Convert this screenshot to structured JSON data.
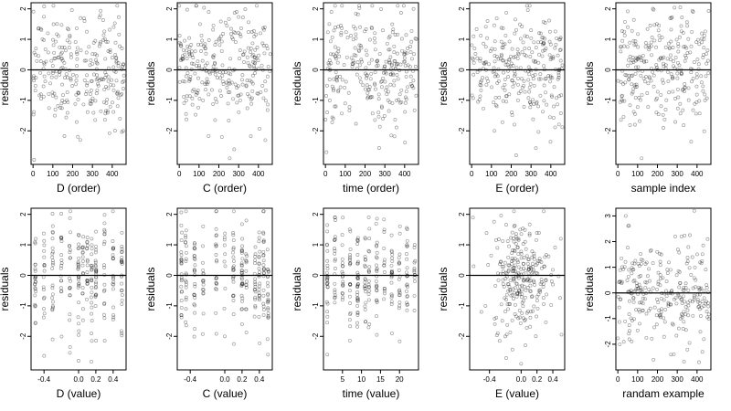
{
  "chart_data": [
    {
      "type": "scatter",
      "title": "",
      "xlabel": "D (order)",
      "ylabel": "residuals",
      "xlim": [
        -10,
        470
      ],
      "ylim": [
        -3.1,
        2.2
      ],
      "xticks": [
        0,
        100,
        200,
        300,
        400
      ],
      "yticks": [
        -2,
        -1,
        0,
        1,
        2
      ],
      "reference_line_y": 0,
      "grid": false,
      "legend": "none",
      "series": [
        {
          "x": [
            12,
            40,
            75,
            110,
            150,
            185,
            220,
            260,
            300,
            340,
            380,
            420,
            455
          ],
          "y": [
            0.5,
            -0.8,
            1.2,
            -1.5,
            0.3,
            0.9,
            -0.2,
            1.6,
            0.2,
            1.8,
            -0.6,
            0.4,
            -2.0
          ]
        }
      ]
    },
    {
      "type": "scatter",
      "title": "",
      "xlabel": "C (order)",
      "ylabel": "residuals",
      "xlim": [
        -10,
        470
      ],
      "ylim": [
        -3.1,
        2.2
      ],
      "xticks": [
        0,
        100,
        200,
        300,
        400
      ],
      "yticks": [
        -2,
        -1,
        0,
        1,
        2
      ],
      "reference_line_y": 0,
      "grid": false,
      "legend": "none",
      "series": [
        {
          "x": [
            8,
            35,
            70,
            105,
            140,
            180,
            215,
            255,
            290,
            330,
            370,
            410,
            450
          ],
          "y": [
            0.8,
            -1.0,
            0.4,
            1.5,
            -0.3,
            0.2,
            -2.2,
            -2.9,
            1.9,
            0.6,
            -0.7,
            1.2,
            0.1
          ]
        }
      ]
    },
    {
      "type": "scatter",
      "title": "",
      "xlabel": "time (order)",
      "ylabel": "residuals",
      "xlim": [
        -10,
        470
      ],
      "ylim": [
        -3.1,
        2.2
      ],
      "xticks": [
        0,
        100,
        200,
        300,
        400
      ],
      "yticks": [
        -2,
        -1,
        0,
        1,
        2
      ],
      "reference_line_y": 0,
      "grid": false,
      "legend": "none",
      "series": [
        {
          "x": [
            5,
            30,
            65,
            100,
            140,
            175,
            210,
            250,
            290,
            325,
            365,
            405,
            445
          ],
          "y": [
            -2.7,
            1.9,
            0.6,
            -1.1,
            0.3,
            1.4,
            -0.5,
            0.9,
            -1.6,
            1.1,
            0.2,
            -0.9,
            2.0
          ]
        }
      ]
    },
    {
      "type": "scatter",
      "title": "",
      "xlabel": "E (order)",
      "ylabel": "residuals",
      "xlim": [
        -10,
        470
      ],
      "ylim": [
        -3.1,
        2.2
      ],
      "xticks": [
        0,
        100,
        200,
        300,
        400
      ],
      "yticks": [
        -2,
        -1,
        0,
        1,
        2
      ],
      "reference_line_y": 0,
      "grid": false,
      "legend": "none",
      "series": [
        {
          "x": [
            10,
            45,
            80,
            115,
            150,
            190,
            225,
            260,
            300,
            340,
            375,
            415,
            450
          ],
          "y": [
            1.1,
            -0.4,
            1.6,
            -2.0,
            0.5,
            -0.8,
            -2.8,
            0.9,
            1.3,
            -0.3,
            0.7,
            -1.2,
            0.3
          ]
        }
      ]
    },
    {
      "type": "scatter",
      "title": "",
      "xlabel": "sample index",
      "ylabel": "residuals",
      "xlim": [
        -10,
        470
      ],
      "ylim": [
        -3.1,
        2.2
      ],
      "xticks": [
        0,
        100,
        200,
        300,
        400
      ],
      "yticks": [
        -2,
        -1,
        0,
        1,
        2
      ],
      "reference_line_y": 0,
      "grid": false,
      "legend": "none",
      "series": [
        {
          "x": [
            15,
            50,
            85,
            120,
            155,
            195,
            230,
            270,
            305,
            345,
            380,
            420,
            455
          ],
          "y": [
            0.6,
            1.4,
            -0.5,
            -2.9,
            0.8,
            -1.4,
            0.2,
            1.7,
            -0.9,
            0.4,
            1.9,
            -0.2,
            0.3
          ]
        }
      ]
    },
    {
      "type": "scatter",
      "title": "",
      "xlabel": "D (value)",
      "ylabel": "residuals",
      "xlim": [
        -0.55,
        0.55
      ],
      "ylim": [
        -3.1,
        2.2
      ],
      "xticks": [
        -0.4,
        0,
        0.2,
        0.4
      ],
      "xticklabels": [
        "-0.4",
        "0.0",
        "0.2",
        "0.4"
      ],
      "yticks": [
        -2,
        -1,
        0,
        1,
        2
      ],
      "reference_line_y": 0,
      "grid": false,
      "legend": "none",
      "series": [
        {
          "x": [
            -0.5,
            -0.4,
            -0.3,
            -0.2,
            -0.1,
            0,
            0.05,
            0.1,
            0.15,
            0.2,
            0.3,
            0.4,
            0.5
          ],
          "y": [
            -1.0,
            0.8,
            -2.1,
            1.2,
            -0.4,
            -2.8,
            0.6,
            1.1,
            -0.9,
            0.3,
            -1.4,
            0.9,
            -1.9
          ]
        }
      ]
    },
    {
      "type": "scatter",
      "title": "",
      "xlabel": "C (value)",
      "ylabel": "residuals",
      "xlim": [
        -0.55,
        0.55
      ],
      "ylim": [
        -3.1,
        2.2
      ],
      "xticks": [
        -0.4,
        0,
        0.2,
        0.4
      ],
      "xticklabels": [
        "-0.4",
        "0.0",
        "0.2",
        "0.4"
      ],
      "yticks": [
        -2,
        -1,
        0,
        1,
        2
      ],
      "reference_line_y": 0,
      "grid": false,
      "legend": "none",
      "series": [
        {
          "x": [
            -0.5,
            -0.45,
            -0.35,
            -0.25,
            -0.1,
            0,
            0.1,
            0.2,
            0.25,
            0.35,
            0.4,
            0.45,
            0.5
          ],
          "y": [
            0.5,
            -1.1,
            0.9,
            -0.6,
            1.3,
            -2.0,
            0.2,
            -1.6,
            1.8,
            0.4,
            -0.8,
            1.1,
            -2.6
          ]
        }
      ]
    },
    {
      "type": "scatter",
      "title": "",
      "xlabel": "time (value)",
      "ylabel": "residuals",
      "xlim": [
        0,
        25
      ],
      "ylim": [
        -3.1,
        2.2
      ],
      "xticks": [
        5,
        10,
        15,
        20
      ],
      "yticks": [
        -2,
        -1,
        0,
        1,
        2
      ],
      "reference_line_y": 0,
      "grid": false,
      "legend": "none",
      "series": [
        {
          "x": [
            1,
            3,
            5,
            7,
            9,
            11,
            12,
            14,
            16,
            18,
            20,
            22,
            24
          ],
          "y": [
            -2.6,
            1.9,
            -0.8,
            0.6,
            -1.3,
            1.2,
            0.1,
            -0.5,
            1.5,
            -1.9,
            0.4,
            -0.7,
            1.0
          ]
        }
      ]
    },
    {
      "type": "scatter",
      "title": "",
      "xlabel": "E (value)",
      "ylabel": "residuals",
      "xlim": [
        -0.65,
        0.55
      ],
      "ylim": [
        -3.1,
        2.2
      ],
      "xticks": [
        -0.4,
        0,
        0.2,
        0.4
      ],
      "xticklabels": [
        "-0.4",
        "0.0",
        "0.2",
        "0.4"
      ],
      "yticks": [
        -2,
        -1,
        0,
        1,
        2
      ],
      "reference_line_y": 0,
      "grid": false,
      "legend": "none",
      "series": [
        {
          "x": [
            -0.6,
            -0.45,
            -0.3,
            -0.2,
            -0.1,
            -0.05,
            0,
            0.05,
            0.1,
            0.2,
            0.3,
            0.4,
            0.5
          ],
          "y": [
            0.3,
            -1.0,
            0.9,
            -2.0,
            0.5,
            -0.6,
            -2.9,
            1.1,
            0.2,
            -0.7,
            0.6,
            -0.3,
            1.2
          ]
        }
      ]
    },
    {
      "type": "scatter",
      "title": "",
      "xlabel": "randam example",
      "ylabel": "residuals",
      "xlim": [
        -10,
        470
      ],
      "ylim": [
        -3.0,
        3.3
      ],
      "xticks": [
        0,
        100,
        200,
        300,
        400
      ],
      "yticks": [
        -2,
        -1,
        0,
        1,
        2,
        3
      ],
      "reference_line_y": 0,
      "grid": false,
      "legend": "none",
      "series": [
        {
          "x": [
            10,
            40,
            75,
            110,
            145,
            180,
            220,
            255,
            290,
            330,
            370,
            410,
            450
          ],
          "y": [
            -2.0,
            3.0,
            0.9,
            -1.2,
            0.4,
            -2.6,
            1.5,
            -0.5,
            2.2,
            -1.4,
            0.7,
            -2.7,
            0.2
          ]
        }
      ]
    }
  ]
}
